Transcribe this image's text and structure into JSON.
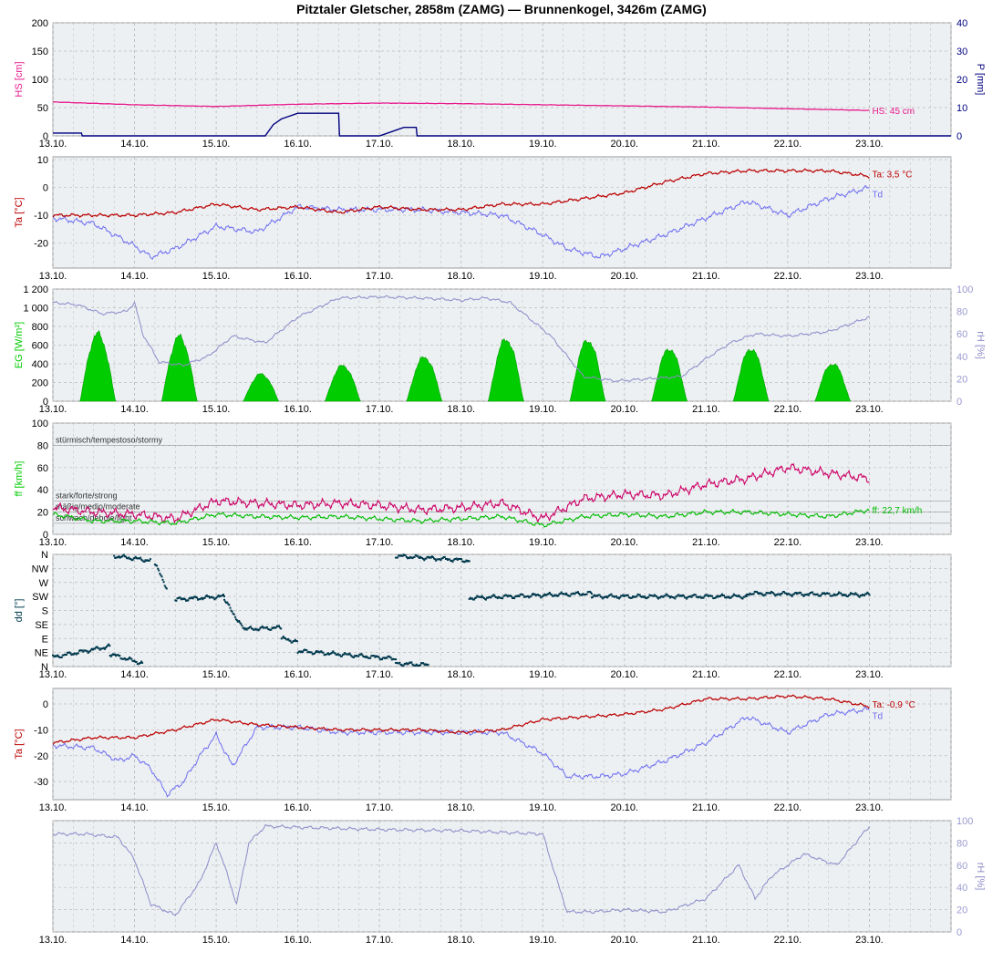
{
  "title": "Pitztaler Gletscher, 2858m (ZAMG) — Brunnenkogel, 3426m (ZAMG)",
  "x_tick_labels": [
    "13.10.",
    "14.10.",
    "15.10.",
    "16.10.",
    "17.10.",
    "18.10.",
    "19.10.",
    "20.10.",
    "21.10.",
    "22.10.",
    "23.10."
  ],
  "colors": {
    "hs": "#e8198b",
    "precip": "#000080",
    "ta": "#bb0000",
    "td": "#6e6ef0",
    "eg": "#00cc00",
    "rh": "#8c8cc8",
    "ff": "#00bb00",
    "gust": "#cc0066",
    "dd": "#00394d",
    "plot_bg": "#edf0f3",
    "grid": "#bcbcbc"
  },
  "chart_data": [
    {
      "type": "line",
      "panel": "snow-precip",
      "x_range_days": [
        0,
        11
      ],
      "x_labels": [
        "13.10.",
        "14.10.",
        "15.10.",
        "16.10.",
        "17.10.",
        "18.10.",
        "19.10.",
        "20.10.",
        "21.10.",
        "22.10.",
        "23.10."
      ],
      "y_left": {
        "label": "HS [cm]",
        "range": [
          0,
          200
        ],
        "ticks": [
          "0",
          "50",
          "100",
          "150",
          "200"
        ]
      },
      "y_right": {
        "label": "P [mm]",
        "range": [
          0,
          40
        ],
        "ticks": [
          "0",
          "10",
          "20",
          "30",
          "40"
        ]
      },
      "series": [
        {
          "key": "hs",
          "axis": "left",
          "x": [
            0,
            1,
            2,
            3,
            4,
            5,
            6,
            7,
            8,
            9,
            10
          ],
          "values": [
            60,
            55,
            52,
            56,
            58,
            57,
            55,
            53,
            51,
            48,
            45
          ]
        },
        {
          "key": "precip",
          "axis": "right",
          "step": true,
          "x": [
            0,
            0.35,
            0.36,
            2.6,
            2.7,
            2.8,
            3.0,
            3.5,
            3.51,
            4.0,
            4.2,
            4.3,
            4.45,
            4.46,
            11
          ],
          "values": [
            1,
            1,
            0,
            0,
            4,
            6,
            8,
            8,
            0,
            0,
            2,
            3,
            3,
            0,
            0
          ]
        }
      ],
      "annotation": "HS: 45 cm"
    },
    {
      "type": "line",
      "panel": "temperature-station",
      "x_range_days": [
        0,
        11
      ],
      "x_labels": [
        "13.10.",
        "14.10.",
        "15.10.",
        "16.10.",
        "17.10.",
        "18.10.",
        "19.10.",
        "20.10.",
        "21.10.",
        "22.10.",
        "23.10."
      ],
      "y_left": {
        "label": "Ta [°C]",
        "range": [
          -29,
          11
        ],
        "ticks": [
          "-20",
          "-10",
          "0",
          "10"
        ]
      },
      "series": [
        {
          "key": "ta",
          "x": [
            0,
            0.5,
            1,
            1.5,
            2,
            2.5,
            3,
            3.5,
            4,
            4.5,
            5,
            5.5,
            6,
            6.5,
            7,
            7.5,
            8,
            8.5,
            9,
            9.5,
            10
          ],
          "values": [
            -10,
            -10,
            -10,
            -9,
            -6,
            -8,
            -7,
            -9,
            -7,
            -8,
            -8,
            -6,
            -6,
            -4,
            -2,
            2,
            5,
            6,
            6,
            6,
            4
          ]
        },
        {
          "key": "td",
          "x": [
            0,
            0.5,
            1,
            1.2,
            1.5,
            2,
            2.5,
            3,
            3.5,
            4,
            4.5,
            5,
            5.5,
            6,
            6.3,
            6.7,
            7,
            7.5,
            8,
            8.5,
            9,
            9.5,
            10
          ],
          "values": [
            -11,
            -13,
            -21,
            -25,
            -22,
            -14,
            -16,
            -7,
            -8,
            -8,
            -8,
            -9,
            -10,
            -17,
            -22,
            -25,
            -22,
            -17,
            -11,
            -5,
            -10,
            -4,
            0
          ]
        }
      ],
      "annotations": [
        "Ta: 3,5 °C",
        "Td"
      ]
    },
    {
      "type": "area",
      "panel": "radiation-humidity",
      "x_range_days": [
        0,
        11
      ],
      "x_labels": [
        "13.10.",
        "14.10.",
        "15.10.",
        "16.10.",
        "17.10.",
        "18.10.",
        "19.10.",
        "20.10.",
        "21.10.",
        "22.10.",
        "23.10."
      ],
      "y_left": {
        "label": "EG [W/m²]",
        "range": [
          0,
          1200
        ],
        "ticks": [
          "0",
          "200",
          "400",
          "600",
          "800",
          "1 000",
          "1 200"
        ]
      },
      "y_right": {
        "label": "rH [%]",
        "range": [
          0,
          100
        ],
        "ticks": [
          "0",
          "20",
          "40",
          "60",
          "80",
          "100"
        ]
      },
      "radiation_peaks": [
        720,
        690,
        290,
        380,
        470,
        660,
        650,
        560,
        560,
        400
      ],
      "series": [
        {
          "key": "rh",
          "axis": "right",
          "x": [
            0,
            0.3,
            0.6,
            0.9,
            1.0,
            1.1,
            1.3,
            1.6,
            1.9,
            2.2,
            2.6,
            3.0,
            3.5,
            4.0,
            4.5,
            5.0,
            5.3,
            5.6,
            5.9,
            6.1,
            6.5,
            6.9,
            7.3,
            7.7,
            8.0,
            8.3,
            8.6,
            9.0,
            9.5,
            10.0
          ],
          "values": [
            88,
            86,
            78,
            80,
            88,
            60,
            35,
            32,
            40,
            58,
            52,
            75,
            92,
            93,
            92,
            90,
            92,
            88,
            70,
            58,
            22,
            18,
            20,
            22,
            38,
            52,
            60,
            58,
            62,
            75
          ]
        }
      ]
    },
    {
      "type": "line",
      "panel": "wind-speed",
      "x_range_days": [
        0,
        11
      ],
      "x_labels": [
        "13.10.",
        "14.10.",
        "15.10.",
        "16.10.",
        "17.10.",
        "18.10.",
        "19.10.",
        "20.10.",
        "21.10.",
        "22.10.",
        "23.10."
      ],
      "y_left": {
        "label": "ff [km/h]",
        "range": [
          0,
          100
        ],
        "ticks": [
          "0",
          "20",
          "40",
          "60",
          "80",
          "100"
        ]
      },
      "series": [
        {
          "key": "gust",
          "x": [
            0,
            0.5,
            1,
            1.5,
            2,
            2.5,
            3,
            3.5,
            4,
            4.5,
            5,
            5.5,
            6,
            6.5,
            7,
            7.5,
            8,
            8.5,
            9,
            9.5,
            10
          ],
          "values": [
            24,
            20,
            18,
            14,
            30,
            28,
            26,
            28,
            26,
            22,
            24,
            28,
            14,
            32,
            36,
            35,
            45,
            50,
            60,
            55,
            50
          ]
        },
        {
          "key": "ff",
          "x": [
            0,
            0.5,
            1,
            1.5,
            2,
            2.5,
            3,
            3.5,
            4,
            4.5,
            5,
            5.5,
            6,
            6.5,
            7,
            7.5,
            8,
            8.5,
            9,
            9.5,
            10
          ],
          "values": [
            18,
            12,
            12,
            10,
            18,
            16,
            15,
            16,
            14,
            12,
            14,
            16,
            8,
            16,
            18,
            16,
            20,
            20,
            18,
            16,
            22
          ]
        }
      ],
      "zone_lines": [
        {
          "value": 80,
          "label": "stürmisch/tempestoso/stormy"
        },
        {
          "value": 30,
          "label": "stark/forte/strong"
        },
        {
          "value": 20,
          "label": "mäßig/medio/moderate"
        },
        {
          "value": 10,
          "label": "schwach/debole/light"
        }
      ],
      "annotation": "ff: 22,7 km/h"
    },
    {
      "type": "scatter",
      "panel": "wind-direction",
      "x_range_days": [
        0,
        11
      ],
      "x_labels": [
        "13.10.",
        "14.10.",
        "15.10.",
        "16.10.",
        "17.10.",
        "18.10.",
        "19.10.",
        "20.10.",
        "21.10.",
        "22.10.",
        "23.10."
      ],
      "y_left": {
        "label": "dd [°]",
        "range": [
          0,
          360
        ],
        "ticks": [
          "N",
          "NE",
          "E",
          "SE",
          "S",
          "SW",
          "W",
          "NW",
          "N"
        ]
      },
      "segments": [
        {
          "x": [
            0.0,
            0.7
          ],
          "values": [
            30,
            65
          ]
        },
        {
          "x": [
            0.7,
            1.1
          ],
          "values": [
            40,
            10
          ]
        },
        {
          "x": [
            0.75,
            1.2
          ],
          "values": [
            355,
            340
          ]
        },
        {
          "x": [
            1.25,
            1.4
          ],
          "values": [
            330,
            250
          ]
        },
        {
          "x": [
            1.5,
            2.1
          ],
          "values": [
            215,
            225
          ]
        },
        {
          "x": [
            2.1,
            2.35
          ],
          "values": [
            215,
            115
          ]
        },
        {
          "x": [
            2.35,
            2.8
          ],
          "values": [
            120,
            125
          ]
        },
        {
          "x": [
            2.8,
            3.0
          ],
          "values": [
            90,
            80
          ]
        },
        {
          "x": [
            3.0,
            4.2
          ],
          "values": [
            50,
            25
          ]
        },
        {
          "x": [
            4.2,
            4.6
          ],
          "values": [
            10,
            5
          ]
        },
        {
          "x": [
            4.2,
            5.1
          ],
          "values": [
            355,
            340
          ]
        },
        {
          "x": [
            5.1,
            6.6
          ],
          "values": [
            220,
            235
          ]
        },
        {
          "x": [
            6.6,
            8.5
          ],
          "values": [
            225,
            225
          ]
        },
        {
          "x": [
            8.5,
            10.0
          ],
          "values": [
            235,
            230
          ]
        }
      ]
    },
    {
      "type": "line",
      "panel": "temperature-summit",
      "x_range_days": [
        0,
        11
      ],
      "x_labels": [
        "13.10.",
        "14.10.",
        "15.10.",
        "16.10.",
        "17.10.",
        "18.10.",
        "19.10.",
        "20.10.",
        "21.10.",
        "22.10.",
        "23.10."
      ],
      "y_left": {
        "label": "Ta [°C]",
        "range": [
          -37,
          6
        ],
        "ticks": [
          "-30",
          "-20",
          "-10",
          "0"
        ]
      },
      "series": [
        {
          "key": "ta",
          "x": [
            0,
            0.5,
            1,
            1.5,
            2,
            2.5,
            3,
            3.5,
            4,
            4.5,
            5,
            5.5,
            6,
            6.5,
            7,
            7.5,
            8,
            8.5,
            9,
            9.5,
            10
          ],
          "values": [
            -15,
            -13,
            -13,
            -10,
            -6,
            -8,
            -9,
            -10,
            -10,
            -10,
            -11,
            -10,
            -6,
            -5,
            -4,
            -2,
            2,
            2,
            3,
            2,
            -1
          ]
        },
        {
          "key": "td",
          "x": [
            0,
            0.5,
            0.8,
            1,
            1.2,
            1.4,
            1.6,
            1.8,
            2.0,
            2.2,
            2.5,
            3.0,
            3.5,
            4.0,
            4.5,
            5.0,
            5.5,
            6.0,
            6.3,
            6.7,
            7.0,
            7.5,
            8.0,
            8.5,
            9.0,
            9.5,
            10.0
          ],
          "values": [
            -16,
            -17,
            -22,
            -20,
            -25,
            -35,
            -30,
            -20,
            -12,
            -24,
            -9,
            -9,
            -11,
            -11,
            -11,
            -11,
            -11,
            -19,
            -28,
            -28,
            -27,
            -22,
            -15,
            -5,
            -11,
            -4,
            -2
          ]
        }
      ],
      "annotations": [
        "Ta: -0,9 °C",
        "Td"
      ]
    },
    {
      "type": "line",
      "panel": "humidity-summit",
      "x_range_days": [
        0,
        11
      ],
      "x_labels": [
        "13.10.",
        "14.10.",
        "15.10.",
        "16.10.",
        "17.10.",
        "18.10.",
        "19.10.",
        "20.10.",
        "21.10.",
        "22.10.",
        "23.10."
      ],
      "y_right": {
        "label": "rH [%]",
        "range": [
          0,
          100
        ],
        "ticks": [
          "0",
          "20",
          "40",
          "60",
          "80",
          "100"
        ]
      },
      "series": [
        {
          "key": "rh",
          "x": [
            0,
            0.4,
            0.8,
            1.0,
            1.2,
            1.5,
            1.8,
            2.0,
            2.1,
            2.25,
            2.4,
            2.6,
            3.0,
            3.5,
            4.0,
            5.0,
            6.0,
            6.2,
            6.3,
            6.6,
            7.0,
            7.5,
            8.0,
            8.4,
            8.6,
            8.8,
            9.2,
            9.6,
            10.0
          ],
          "values": [
            88,
            88,
            85,
            65,
            25,
            15,
            45,
            80,
            60,
            25,
            80,
            95,
            94,
            93,
            92,
            91,
            88,
            40,
            18,
            18,
            20,
            18,
            30,
            60,
            30,
            50,
            70,
            60,
            95
          ]
        }
      ]
    }
  ]
}
